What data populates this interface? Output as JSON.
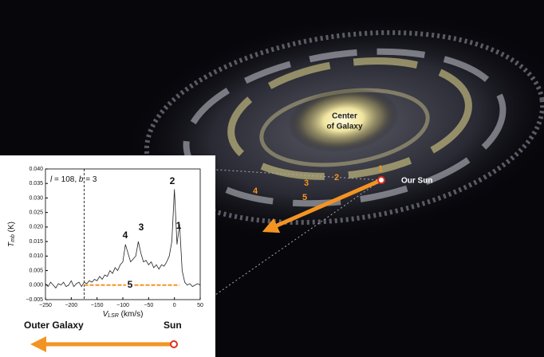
{
  "chart_data": {
    "type": "line",
    "x": [
      -250,
      -245,
      -240,
      -235,
      -230,
      -225,
      -220,
      -215,
      -210,
      -205,
      -200,
      -195,
      -190,
      -185,
      -180,
      -175,
      -170,
      -165,
      -160,
      -155,
      -150,
      -145,
      -140,
      -135,
      -130,
      -125,
      -120,
      -115,
      -110,
      -105,
      -100,
      -95,
      -90,
      -85,
      -80,
      -75,
      -70,
      -65,
      -60,
      -55,
      -50,
      -45,
      -40,
      -35,
      -30,
      -25,
      -20,
      -15,
      -10,
      -5,
      0,
      5,
      10,
      15,
      20,
      25,
      30,
      35,
      40,
      45,
      50
    ],
    "values": [
      0.0005,
      -0.0005,
      0.001,
      0.0,
      -0.001,
      0.0005,
      0.0,
      0.001,
      -0.0005,
      0.0,
      0.0015,
      -0.0005,
      0.0005,
      0.001,
      -0.0005,
      0.001,
      0.0005,
      0.0015,
      0.001,
      0.002,
      0.0015,
      0.003,
      0.002,
      0.0035,
      0.003,
      0.005,
      0.004,
      0.006,
      0.005,
      0.007,
      0.008,
      0.014,
      0.011,
      0.008,
      0.009,
      0.01,
      0.015,
      0.011,
      0.008,
      0.0085,
      0.007,
      0.008,
      0.006,
      0.007,
      0.0055,
      0.007,
      0.0065,
      0.008,
      0.01,
      0.015,
      0.033,
      0.014,
      0.021,
      0.005,
      0.001,
      0.0,
      0.0005,
      -0.0005,
      0.0,
      0.0005,
      0.0
    ],
    "color": "#222222",
    "xlim": [
      -250,
      50
    ],
    "ylim": [
      -0.005,
      0.04
    ],
    "xticks": [
      {
        "value": -250,
        "label": "−250"
      },
      {
        "value": -200,
        "label": "−200"
      },
      {
        "value": -150,
        "label": "−150"
      },
      {
        "value": -100,
        "label": "−100"
      },
      {
        "value": -50,
        "label": "−50"
      },
      0,
      50
    ],
    "yticks": [
      {
        "value": -0.005,
        "label": "−0.005"
      },
      {
        "value": 0,
        "label": "0.000"
      },
      0.005,
      {
        "value": 0.01,
        "label": "0.010"
      },
      0.015,
      {
        "value": 0.02,
        "label": "0.020"
      },
      0.025,
      {
        "value": 0.03,
        "label": "0.030"
      },
      0.035,
      {
        "value": 0.04,
        "label": "0.040"
      }
    ],
    "x_label": [
      "V",
      "LSR",
      " (km/s)"
    ],
    "y_label": [
      "T",
      "mb",
      " (K)"
    ],
    "annotation": [
      "l",
      " = 108, ",
      "b",
      " = 3"
    ],
    "reference_x": -175,
    "segment_5": {
      "x": [
        -175,
        10
      ],
      "y": 0
    },
    "peak_labels": [
      "1",
      "2",
      "3",
      "4",
      "5"
    ]
  },
  "galaxy": {
    "center": [
      "Center",
      "of Galaxy"
    ],
    "sun": "Our Sun",
    "markers": [
      "1",
      "2",
      "3",
      "4",
      "5"
    ],
    "outer": "Outer Galaxy",
    "sun_label": "Sun"
  }
}
